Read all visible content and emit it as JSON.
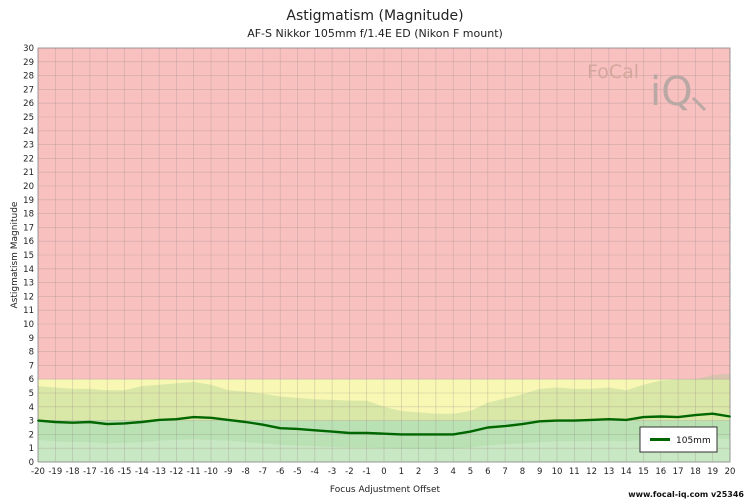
{
  "chart_data": {
    "type": "line",
    "title": "Astigmatism (Magnitude)",
    "subtitle": "AF-S Nikkor 105mm f/1.4E ED (Nikon F mount)",
    "xlabel": "Focus Adjustment Offset",
    "ylabel": "Astigmatism Magnitude",
    "xlim": [
      -20,
      20
    ],
    "ylim": [
      0,
      30
    ],
    "grid": true,
    "legend_position": "bottom-right",
    "zones": [
      {
        "from": 0,
        "to": 3,
        "color": "#c6efc6"
      },
      {
        "from": 3,
        "to": 6,
        "color": "#f8f8b4"
      },
      {
        "from": 6,
        "to": 30,
        "color": "#f9c0c0"
      }
    ],
    "x": [
      -20,
      -19,
      -18,
      -17,
      -16,
      -15,
      -14,
      -13,
      -12,
      -11,
      -10,
      -9,
      -8,
      -7,
      -6,
      -5,
      -4,
      -3,
      -2,
      -1,
      0,
      1,
      2,
      3,
      4,
      5,
      6,
      7,
      8,
      9,
      10,
      11,
      12,
      13,
      14,
      15,
      16,
      17,
      18,
      19,
      20
    ],
    "series": [
      {
        "name": "105mm",
        "color": "#006600",
        "values": [
          3.0,
          2.9,
          2.85,
          2.9,
          2.75,
          2.8,
          2.9,
          3.05,
          3.1,
          3.25,
          3.2,
          3.05,
          2.9,
          2.7,
          2.45,
          2.4,
          2.3,
          2.2,
          2.1,
          2.1,
          2.05,
          2.0,
          2.0,
          2.0,
          2.0,
          2.2,
          2.5,
          2.6,
          2.75,
          2.95,
          3.0,
          3.0,
          3.05,
          3.1,
          3.05,
          3.25,
          3.3,
          3.25,
          3.4,
          3.5,
          3.3
        ]
      }
    ],
    "upper_band": [
      5.5,
      5.4,
      5.3,
      5.3,
      5.2,
      5.2,
      5.5,
      5.6,
      5.7,
      5.8,
      5.6,
      5.2,
      5.1,
      4.95,
      4.75,
      4.65,
      4.55,
      4.5,
      4.45,
      4.45,
      4.0,
      3.7,
      3.6,
      3.5,
      3.5,
      3.7,
      4.3,
      4.6,
      4.9,
      5.3,
      5.4,
      5.3,
      5.3,
      5.4,
      5.2,
      5.6,
      5.9,
      6.0,
      6.0,
      6.3,
      6.4
    ],
    "lower_band": [
      1.6,
      1.5,
      1.45,
      1.45,
      1.35,
      1.4,
      1.45,
      1.55,
      1.6,
      1.65,
      1.6,
      1.55,
      1.45,
      1.35,
      1.25,
      1.2,
      1.15,
      1.1,
      1.05,
      1.05,
      1.0,
      0.95,
      0.95,
      0.95,
      0.95,
      1.05,
      1.2,
      1.3,
      1.35,
      1.45,
      1.5,
      1.5,
      1.5,
      1.55,
      1.5,
      1.6,
      1.65,
      1.6,
      1.7,
      1.75,
      1.65
    ]
  },
  "logo": {
    "text_focal": "FoCal",
    "text_iq": "iQ"
  },
  "footer": {
    "text": "www.focal-iq.com  v25346"
  }
}
